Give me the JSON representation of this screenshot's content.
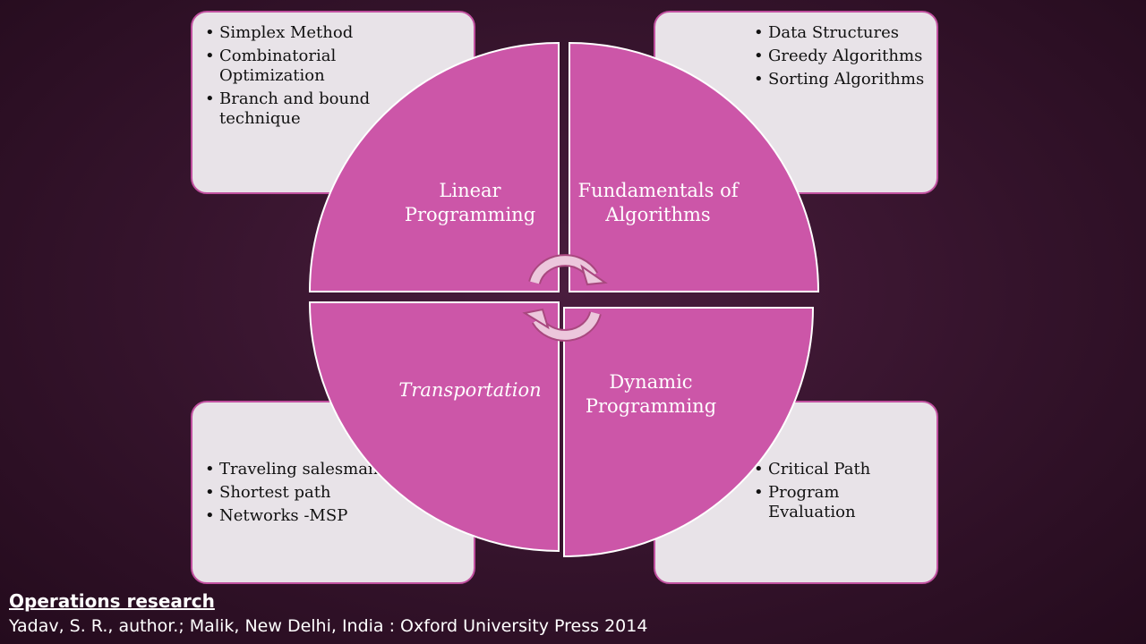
{
  "quadrants": {
    "top_left": {
      "title": "Linear\nProgramming",
      "items": [
        "Simplex Method",
        "Combinatorial Optimization",
        "Branch and bound technique"
      ]
    },
    "top_right": {
      "title": "Fundamentals of Algorithms",
      "items": [
        "Data Structures",
        "Greedy Algorithms",
        "Sorting Algorithms"
      ]
    },
    "bottom_left": {
      "title": "Transportation",
      "items": [
        "Traveling salesman",
        "Shortest path",
        "Networks -MSP"
      ]
    },
    "bottom_right": {
      "title": "Dynamic Programming",
      "items": [
        "Critical Path",
        "Program Evaluation"
      ]
    }
  },
  "citation": {
    "title": "Operations research",
    "text": "Yadav, S. R., author.; Malik, New Delhi, India : Oxford University Press 2014"
  },
  "colors": {
    "segment_fill": "#cc56a8",
    "box_fill": "#e8e3e8",
    "box_border": "#c0509f",
    "background": "#34132b"
  }
}
